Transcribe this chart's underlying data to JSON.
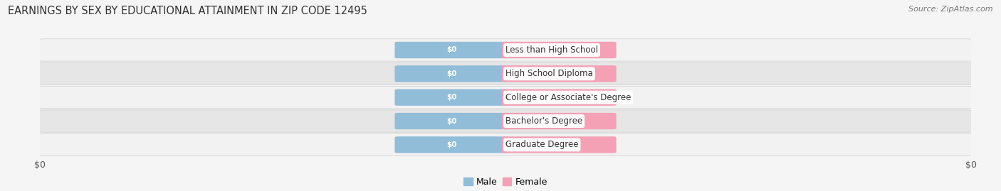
{
  "title": "EARNINGS BY SEX BY EDUCATIONAL ATTAINMENT IN ZIP CODE 12495",
  "source": "Source: ZipAtlas.com",
  "categories": [
    "Less than High School",
    "High School Diploma",
    "College or Associate's Degree",
    "Bachelor's Degree",
    "Graduate Degree"
  ],
  "male_values": [
    0,
    0,
    0,
    0,
    0
  ],
  "female_values": [
    0,
    0,
    0,
    0,
    0
  ],
  "male_color": "#92bdd9",
  "female_color": "#f4a0b5",
  "male_label": "Male",
  "female_label": "Female",
  "value_label": "$0",
  "title_fontsize": 10.5,
  "source_fontsize": 8,
  "bar_height": 0.62,
  "label_fontsize": 8.5,
  "value_fontsize": 7.5,
  "row_odd_color": "#f0f0f0",
  "row_even_color": "#e4e4e4",
  "background_color": "#f5f5f5",
  "title_color": "#333333",
  "source_color": "#777777",
  "category_color": "#333333",
  "value_text_color": "#ffffff",
  "xtick_color": "#555555",
  "xtick_fontsize": 9
}
